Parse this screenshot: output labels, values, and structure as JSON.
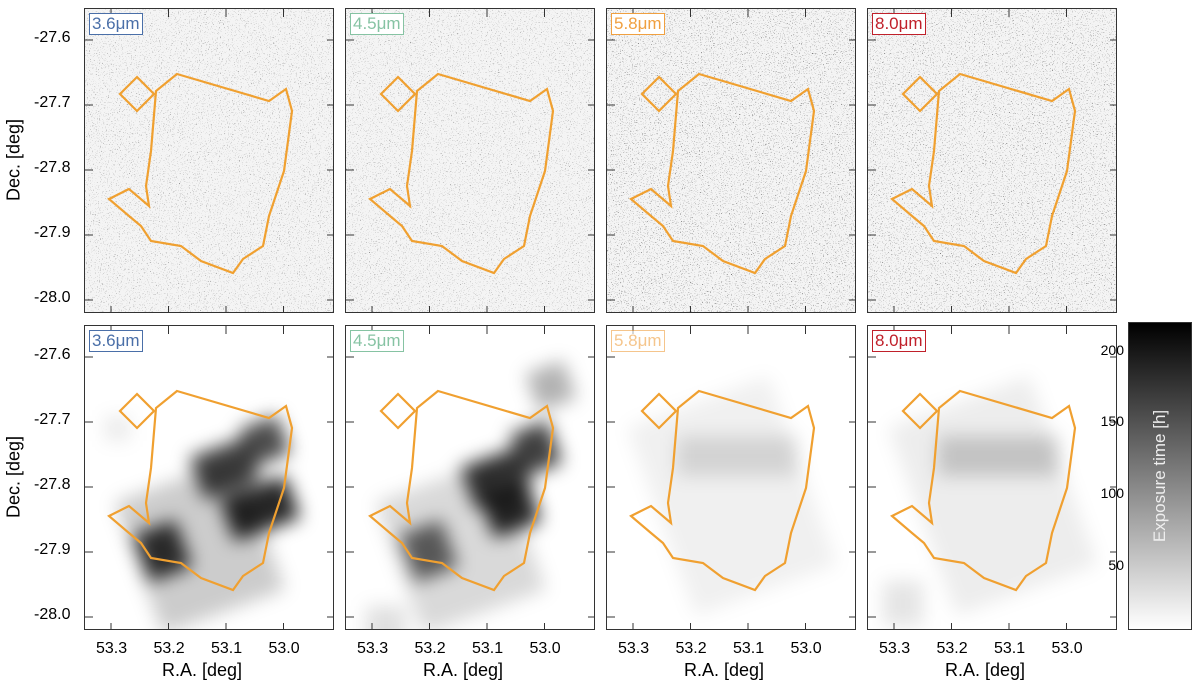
{
  "bands": [
    {
      "label": "3.6μm",
      "color": "#4a6fa8"
    },
    {
      "label": "4.5μm",
      "color": "#86c3a3"
    },
    {
      "label": "5.8μm",
      "color": "#f0a040"
    },
    {
      "label": "8.0μm",
      "color": "#c0202a"
    }
  ],
  "contour_color": "#f0a030",
  "y_axis": {
    "label": "Dec. [deg]",
    "ticks": [
      "-27.6",
      "-27.7",
      "-27.8",
      "-27.9",
      "-28.0"
    ]
  },
  "x_axis": {
    "label": "R.A. [deg]",
    "ticks": [
      "53.3",
      "53.2",
      "53.1",
      "53.0"
    ]
  },
  "colorbar": {
    "label": "Exposure time [h]",
    "ticks": [
      "200",
      "150",
      "100",
      "50"
    ],
    "range": [
      5,
      220
    ]
  }
}
